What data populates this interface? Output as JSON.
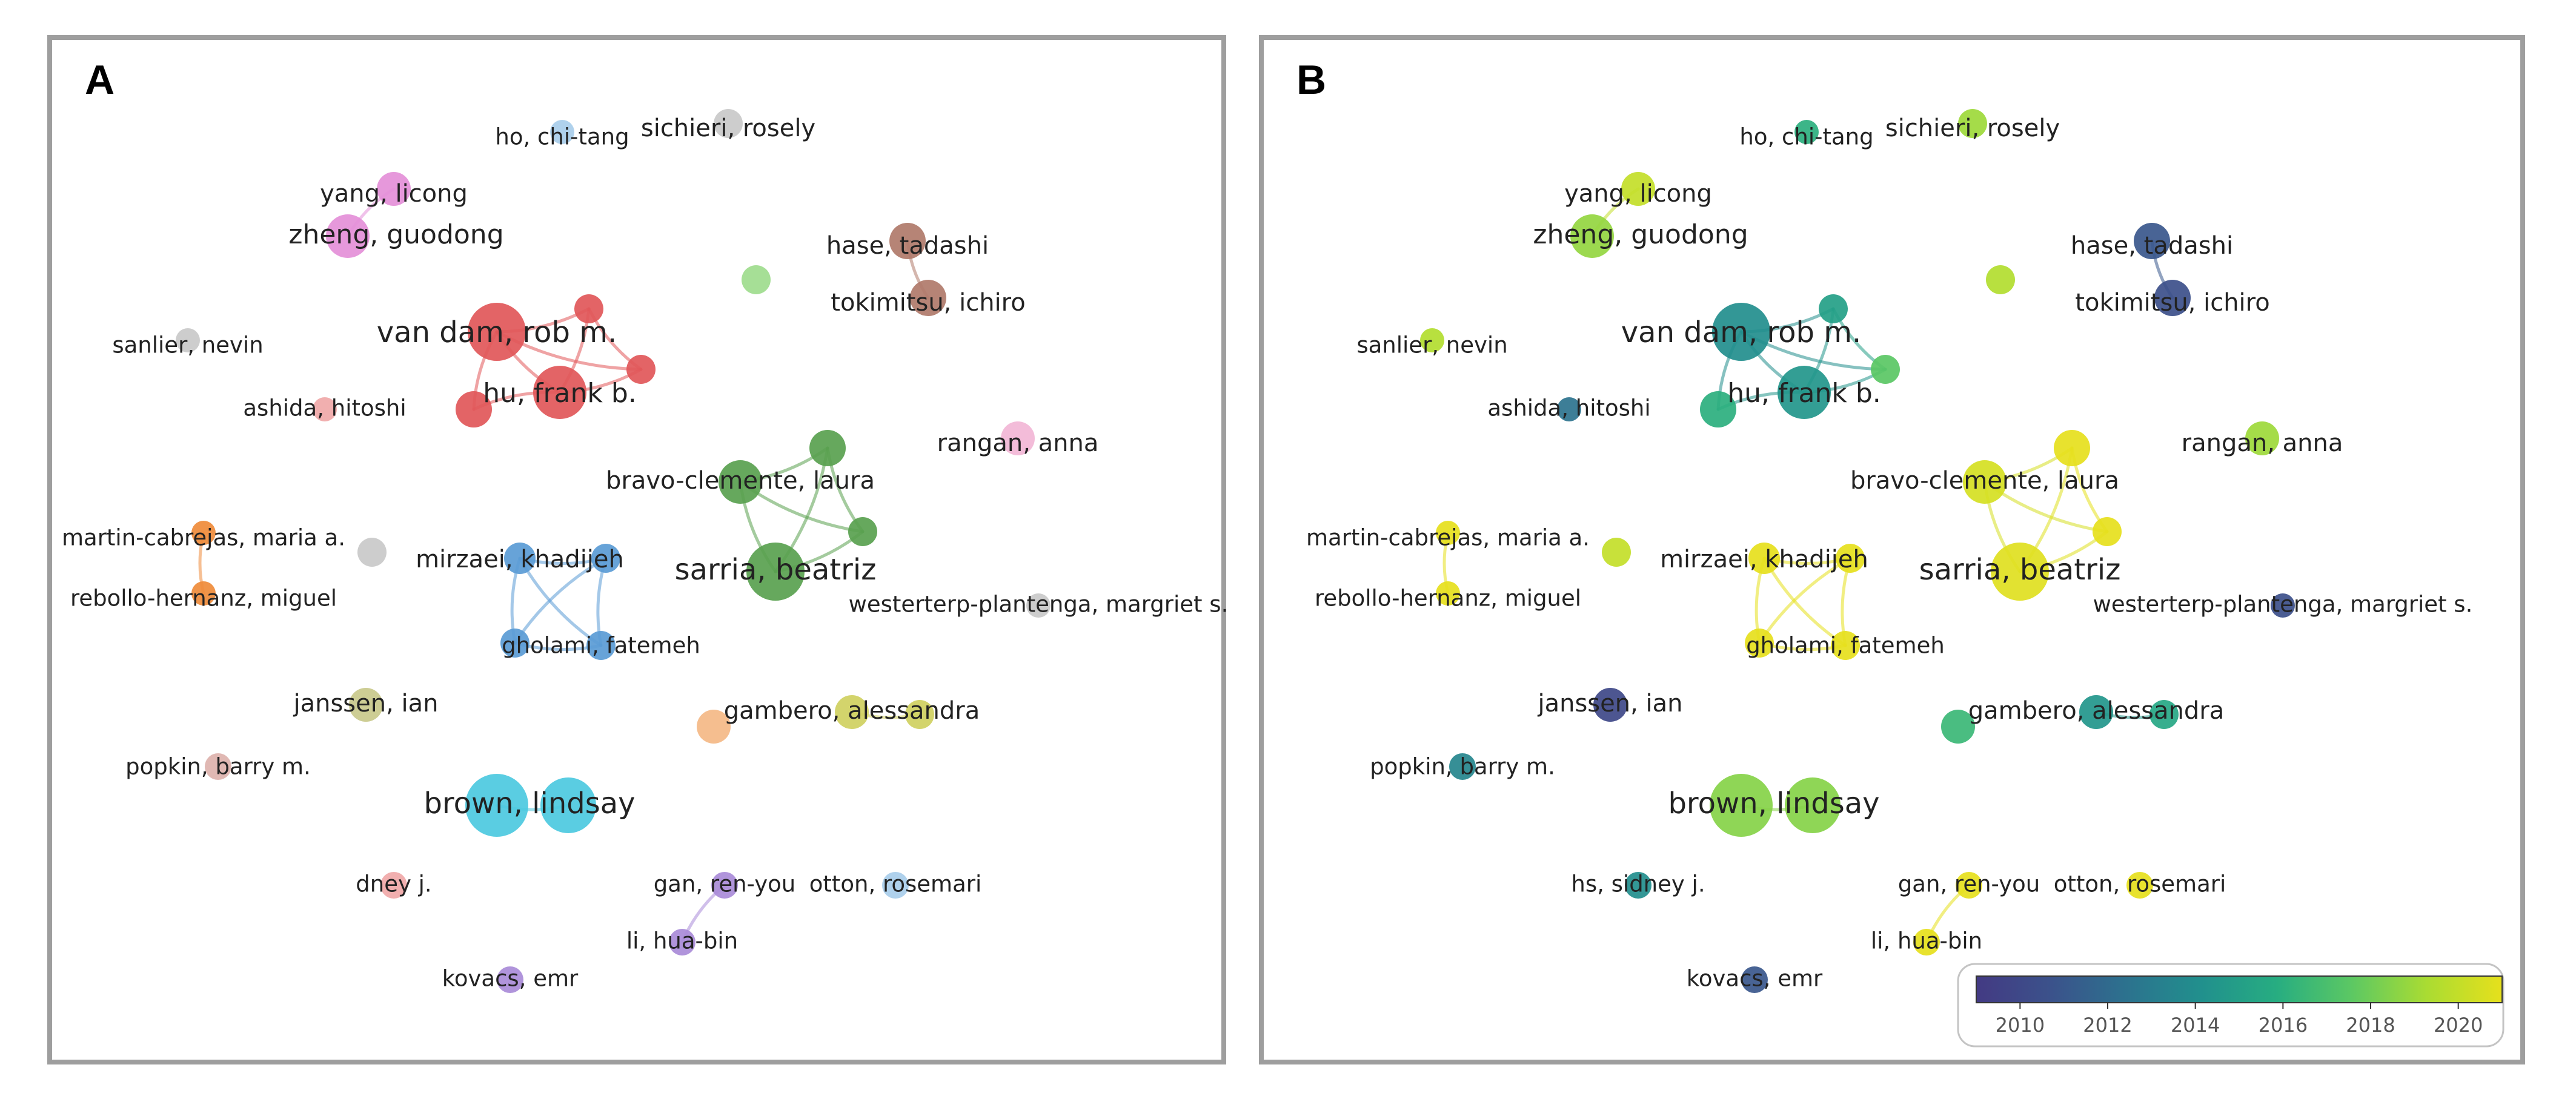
{
  "panels": [
    {
      "letter": "A",
      "mode": "cluster"
    },
    {
      "letter": "B",
      "mode": "overlay"
    }
  ],
  "clusterColors": {
    "red": "#e15759",
    "green": "#59a14f",
    "blue": "#5a9bd5",
    "pink": "#e48fd8",
    "brown": "#b07a6a",
    "cyan": "#4cc9e0",
    "orange": "#ef8b3a",
    "purple": "#a98bd8",
    "lightgreen": "#9edc8d",
    "gray": "#c9c9c9",
    "lightblue": "#a8cdea",
    "lightpink": "#f2b6d6",
    "salmon": "#f0a8a8",
    "olive": "#cfd060",
    "peach": "#f4b986",
    "khaki": "#c9c98b",
    "rose": "#ddb2ad"
  },
  "nodes": [
    {
      "id": "ho",
      "label": "ho, chi-tang",
      "cluster": "lightblue",
      "year": 2016.0,
      "size": 1
    },
    {
      "id": "sichieri",
      "label": "sichieri, rosely",
      "cluster": "gray",
      "year": 2019.0,
      "size": 1.2
    },
    {
      "id": "yang",
      "label": "yang, licong",
      "cluster": "pink",
      "year": 2020.0,
      "size": 1.4
    },
    {
      "id": "zheng",
      "label": "zheng, guodong",
      "cluster": "pink",
      "year": 2018.8,
      "size": 1.8
    },
    {
      "id": "hase",
      "label": "hase, tadashi",
      "cluster": "brown",
      "year": 2011.0,
      "size": 1.5
    },
    {
      "id": "tokimitsu",
      "label": "tokimitsu, ichiro",
      "cluster": "brown",
      "year": 2010.5,
      "size": 1.5
    },
    {
      "id": "lg_dot",
      "label": "",
      "cluster": "lightgreen",
      "year": 2019.5,
      "size": 1.2
    },
    {
      "id": "vandam",
      "label": "van dam, rob m.",
      "cluster": "red",
      "year": 2014.0,
      "size": 2.4
    },
    {
      "id": "hu",
      "label": "hu, frank b.",
      "cluster": "red",
      "year": 2014.5,
      "size": 2.2
    },
    {
      "id": "red_a",
      "label": "",
      "cluster": "red",
      "year": 2015.0,
      "size": 1.2
    },
    {
      "id": "red_b",
      "label": "",
      "cluster": "red",
      "year": 2017.5,
      "size": 1.2
    },
    {
      "id": "red_c",
      "label": "",
      "cluster": "red",
      "year": 2016.0,
      "size": 1.5
    },
    {
      "id": "sanlier",
      "label": "sanlier, nevin",
      "cluster": "gray",
      "year": 2019.5,
      "size": 1
    },
    {
      "id": "ashida",
      "label": "ashida, hitoshi",
      "cluster": "salmon",
      "year": 2012.5,
      "size": 1
    },
    {
      "id": "rangan",
      "label": "rangan, anna",
      "cluster": "lightpink",
      "year": 2019.0,
      "size": 1.4
    },
    {
      "id": "bravo",
      "label": "bravo-clemente, laura",
      "cluster": "green",
      "year": 2020.5,
      "size": 1.8
    },
    {
      "id": "green_a",
      "label": "",
      "cluster": "green",
      "year": 2021.0,
      "size": 1.5
    },
    {
      "id": "green_b",
      "label": "",
      "cluster": "green",
      "year": 2021.0,
      "size": 1.2
    },
    {
      "id": "sarria",
      "label": "sarria, beatriz",
      "cluster": "green",
      "year": 2020.8,
      "size": 2.4
    },
    {
      "id": "martin",
      "label": "martin-cabrejas, maria a.",
      "cluster": "orange",
      "year": 2021.0,
      "size": 1
    },
    {
      "id": "rebollo",
      "label": "rebollo-hernanz, miguel",
      "cluster": "orange",
      "year": 2021.0,
      "size": 1
    },
    {
      "id": "gray_dot",
      "label": "",
      "cluster": "gray",
      "year": 2020.0,
      "size": 1.2
    },
    {
      "id": "mirzaei",
      "label": "mirzaei, khadijeh",
      "cluster": "blue",
      "year": 2021.0,
      "size": 1.3
    },
    {
      "id": "blue_r",
      "label": "",
      "cluster": "blue",
      "year": 2021.0,
      "size": 1.2
    },
    {
      "id": "blue_l",
      "label": "",
      "cluster": "blue",
      "year": 2021.0,
      "size": 1.2
    },
    {
      "id": "gholami",
      "label": "gholami, fatemeh",
      "cluster": "blue",
      "year": 2021.0,
      "size": 1.2
    },
    {
      "id": "westerterp",
      "label": "westerterp-plantenga, margriet s.",
      "cluster": "gray",
      "year": 2010.5,
      "size": 1
    },
    {
      "id": "janssen",
      "label": "janssen, ian",
      "cluster": "khaki",
      "year": 2010.0,
      "size": 1.4
    },
    {
      "id": "peach_dot",
      "label": "",
      "cluster": "peach",
      "year": 2016.5,
      "size": 1.4
    },
    {
      "id": "gambero",
      "label": "gambero, alessandra",
      "cluster": "olive",
      "year": 2014.5,
      "size": 1.4
    },
    {
      "id": "gambero_b",
      "label": "",
      "cluster": "olive",
      "year": 2015.5,
      "size": 1.2
    },
    {
      "id": "popkin",
      "label": "popkin, barry m.",
      "cluster": "rose",
      "year": 2013.5,
      "size": 1.1
    },
    {
      "id": "brown",
      "label": "brown, lindsay",
      "cluster": "cyan",
      "year": 2018.5,
      "size": 2.6
    },
    {
      "id": "brown_b",
      "label": "",
      "cluster": "cyan",
      "year": 2018.5,
      "size": 2.3
    },
    {
      "id": "hs",
      "label": "hs, sidney j.",
      "cluster": "salmon",
      "year": 2014.0,
      "size": 1.1
    },
    {
      "id": "gan",
      "label": "gan, ren-you",
      "cluster": "purple",
      "year": 2021.0,
      "size": 1.1
    },
    {
      "id": "otton",
      "label": "otton, rosemari",
      "cluster": "lightblue",
      "year": 2021.0,
      "size": 1.1
    },
    {
      "id": "li",
      "label": "li, hua-bin",
      "cluster": "purple",
      "year": 2021.0,
      "size": 1.1
    },
    {
      "id": "kovacs",
      "label": "kovacs, emr",
      "cluster": "purple",
      "year": 2011.0,
      "size": 1.1
    }
  ],
  "panelALabelOverrides": {
    "hs": "dney j."
  },
  "edges": [
    [
      "yang",
      "zheng"
    ],
    [
      "hase",
      "tokimitsu"
    ],
    [
      "vandam",
      "hu"
    ],
    [
      "vandam",
      "red_a"
    ],
    [
      "vandam",
      "red_b"
    ],
    [
      "vandam",
      "red_c"
    ],
    [
      "hu",
      "red_a"
    ],
    [
      "hu",
      "red_b"
    ],
    [
      "hu",
      "red_c"
    ],
    [
      "red_a",
      "red_b"
    ],
    [
      "bravo",
      "green_a"
    ],
    [
      "bravo",
      "sarria"
    ],
    [
      "bravo",
      "green_b"
    ],
    [
      "sarria",
      "green_a"
    ],
    [
      "sarria",
      "green_b"
    ],
    [
      "green_a",
      "green_b"
    ],
    [
      "martin",
      "rebollo"
    ],
    [
      "mirzaei",
      "blue_r"
    ],
    [
      "mirzaei",
      "blue_l"
    ],
    [
      "mirzaei",
      "gholami"
    ],
    [
      "blue_r",
      "blue_l"
    ],
    [
      "blue_r",
      "gholami"
    ],
    [
      "blue_l",
      "gholami"
    ],
    [
      "gambero",
      "gambero_b"
    ],
    [
      "brown",
      "brown_b"
    ],
    [
      "gan",
      "li"
    ]
  ],
  "colorbar": {
    "ticks": [
      2010,
      2012,
      2014,
      2016,
      2018,
      2020
    ],
    "range": [
      2009,
      2021
    ],
    "stops": [
      "#433a83",
      "#3b528b",
      "#2c728e",
      "#21908d",
      "#27ad81",
      "#5cc863",
      "#aadc32",
      "#e6e01c"
    ]
  }
}
